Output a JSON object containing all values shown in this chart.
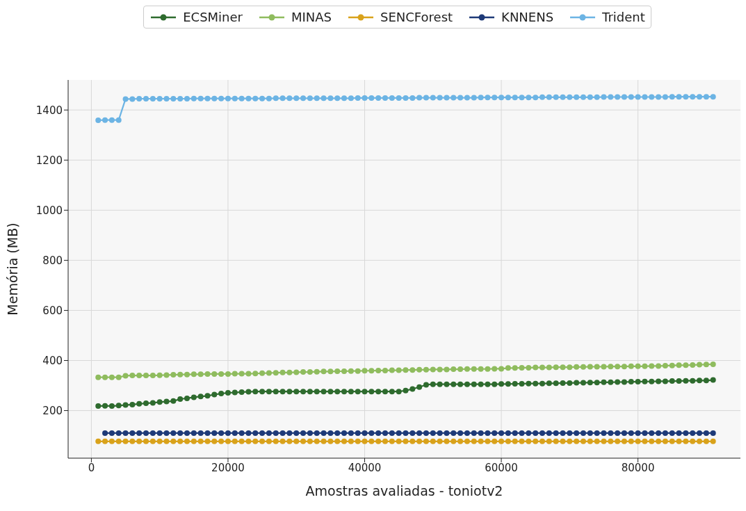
{
  "chart_data": {
    "type": "line",
    "xlabel": "Amostras avaliadas - toniotv2",
    "ylabel": "Memória (MB)",
    "x": [
      1000,
      2000,
      3000,
      4000,
      5000,
      6000,
      7000,
      8000,
      9000,
      10000,
      11000,
      12000,
      13000,
      14000,
      15000,
      16000,
      17000,
      18000,
      19000,
      20000,
      21000,
      22000,
      23000,
      24000,
      25000,
      26000,
      27000,
      28000,
      29000,
      30000,
      31000,
      32000,
      33000,
      34000,
      35000,
      36000,
      37000,
      38000,
      39000,
      40000,
      41000,
      42000,
      43000,
      44000,
      45000,
      46000,
      47000,
      48000,
      49000,
      50000,
      51000,
      52000,
      53000,
      54000,
      55000,
      56000,
      57000,
      58000,
      59000,
      60000,
      61000,
      62000,
      63000,
      64000,
      65000,
      66000,
      67000,
      68000,
      69000,
      70000,
      71000,
      72000,
      73000,
      74000,
      75000,
      76000,
      77000,
      78000,
      79000,
      80000,
      81000,
      82000,
      83000,
      84000,
      85000,
      86000,
      87000,
      88000,
      89000,
      90000,
      91000
    ],
    "series": [
      {
        "name": "ECSMiner",
        "color": "#2e6b2e",
        "values": [
          218,
          219,
          218,
          220,
          222,
          224,
          227,
          229,
          231,
          234,
          236,
          238,
          246,
          249,
          253,
          256,
          259,
          264,
          268,
          271,
          272,
          274,
          275,
          276,
          276,
          276,
          276,
          276,
          276,
          276,
          276,
          276,
          276,
          276,
          276,
          276,
          276,
          276,
          276,
          276,
          276,
          276,
          276,
          276,
          276,
          280,
          286,
          294,
          303,
          305,
          305,
          305,
          305,
          305,
          305,
          305,
          305,
          305,
          305,
          306,
          306,
          307,
          307,
          308,
          308,
          308,
          309,
          309,
          310,
          310,
          311,
          311,
          312,
          312,
          313,
          313,
          314,
          314,
          315,
          315,
          316,
          316,
          317,
          317,
          318,
          318,
          319,
          319,
          320,
          320,
          322
        ]
      },
      {
        "name": "MINAS",
        "color": "#8fbc5e",
        "values": [
          333,
          333,
          333,
          333,
          339,
          340,
          340,
          340,
          340,
          341,
          342,
          343,
          344,
          344,
          345,
          345,
          346,
          346,
          346,
          346,
          347,
          347,
          347,
          348,
          349,
          350,
          351,
          352,
          352,
          353,
          354,
          354,
          355,
          356,
          356,
          357,
          357,
          358,
          358,
          359,
          359,
          360,
          360,
          361,
          361,
          362,
          362,
          363,
          363,
          364,
          364,
          364,
          365,
          365,
          366,
          366,
          366,
          366,
          367,
          367,
          370,
          370,
          371,
          371,
          372,
          372,
          372,
          373,
          373,
          373,
          374,
          374,
          375,
          375,
          375,
          376,
          376,
          376,
          377,
          377,
          377,
          378,
          378,
          379,
          380,
          381,
          381,
          382,
          383,
          384,
          385
        ]
      },
      {
        "name": "SENCForest",
        "color": "#d9a21b",
        "values": [
          77,
          77,
          77,
          77,
          77,
          77,
          77,
          77,
          77,
          77,
          77,
          77,
          77,
          77,
          77,
          77,
          77,
          77,
          77,
          77,
          77,
          77,
          77,
          77,
          77,
          77,
          77,
          77,
          77,
          77,
          77,
          77,
          77,
          77,
          77,
          77,
          77,
          77,
          77,
          77,
          77,
          77,
          77,
          77,
          77,
          77,
          77,
          77,
          77,
          77,
          77,
          77,
          77,
          77,
          77,
          77,
          77,
          77,
          77,
          77,
          77,
          77,
          77,
          77,
          77,
          77,
          77,
          77,
          77,
          77,
          77,
          77,
          77,
          77,
          77,
          77,
          77,
          77,
          77,
          77,
          77,
          77,
          77,
          77,
          77,
          77,
          77,
          77,
          77,
          77,
          77
        ]
      },
      {
        "name": "KNNENS",
        "color": "#1e3a78",
        "values": [
          null,
          110,
          110,
          110,
          110,
          110,
          110,
          110,
          110,
          110,
          110,
          110,
          110,
          110,
          110,
          110,
          110,
          110,
          110,
          110,
          110,
          110,
          110,
          110,
          110,
          110,
          110,
          110,
          110,
          110,
          110,
          110,
          110,
          110,
          110,
          110,
          110,
          110,
          110,
          110,
          110,
          110,
          110,
          110,
          110,
          110,
          110,
          110,
          110,
          110,
          110,
          110,
          110,
          110,
          110,
          110,
          110,
          110,
          110,
          110,
          110,
          110,
          110,
          110,
          110,
          110,
          110,
          110,
          110,
          110,
          110,
          110,
          110,
          110,
          110,
          110,
          110,
          110,
          110,
          110,
          110,
          110,
          110,
          110,
          110,
          110,
          110,
          110,
          110,
          110,
          110
        ]
      },
      {
        "name": "Trident",
        "color": "#6cb4e4",
        "values": [
          1359,
          1360,
          1360,
          1360,
          1444,
          1444,
          1445,
          1445,
          1445,
          1445,
          1445,
          1445,
          1445,
          1445,
          1446,
          1446,
          1446,
          1446,
          1446,
          1446,
          1446,
          1446,
          1446,
          1446,
          1446,
          1446,
          1447,
          1447,
          1447,
          1447,
          1447,
          1447,
          1447,
          1447,
          1447,
          1447,
          1447,
          1447,
          1448,
          1448,
          1448,
          1448,
          1448,
          1448,
          1448,
          1448,
          1448,
          1449,
          1449,
          1449,
          1449,
          1449,
          1449,
          1449,
          1449,
          1449,
          1450,
          1450,
          1450,
          1450,
          1450,
          1450,
          1450,
          1450,
          1450,
          1451,
          1451,
          1451,
          1451,
          1451,
          1451,
          1451,
          1451,
          1451,
          1452,
          1452,
          1452,
          1452,
          1452,
          1452,
          1452,
          1452,
          1452,
          1452,
          1453,
          1453,
          1453,
          1453,
          1453,
          1453,
          1453
        ]
      }
    ],
    "xlim": [
      -3400,
      95000
    ],
    "xticks": [
      0,
      20000,
      40000,
      60000,
      80000
    ],
    "ylim": [
      10,
      1520
    ],
    "yticks": [
      200,
      400,
      600,
      800,
      1000,
      1200,
      1400
    ],
    "grid": true,
    "legend": "top",
    "marker": "circle",
    "line_style": "solid"
  }
}
